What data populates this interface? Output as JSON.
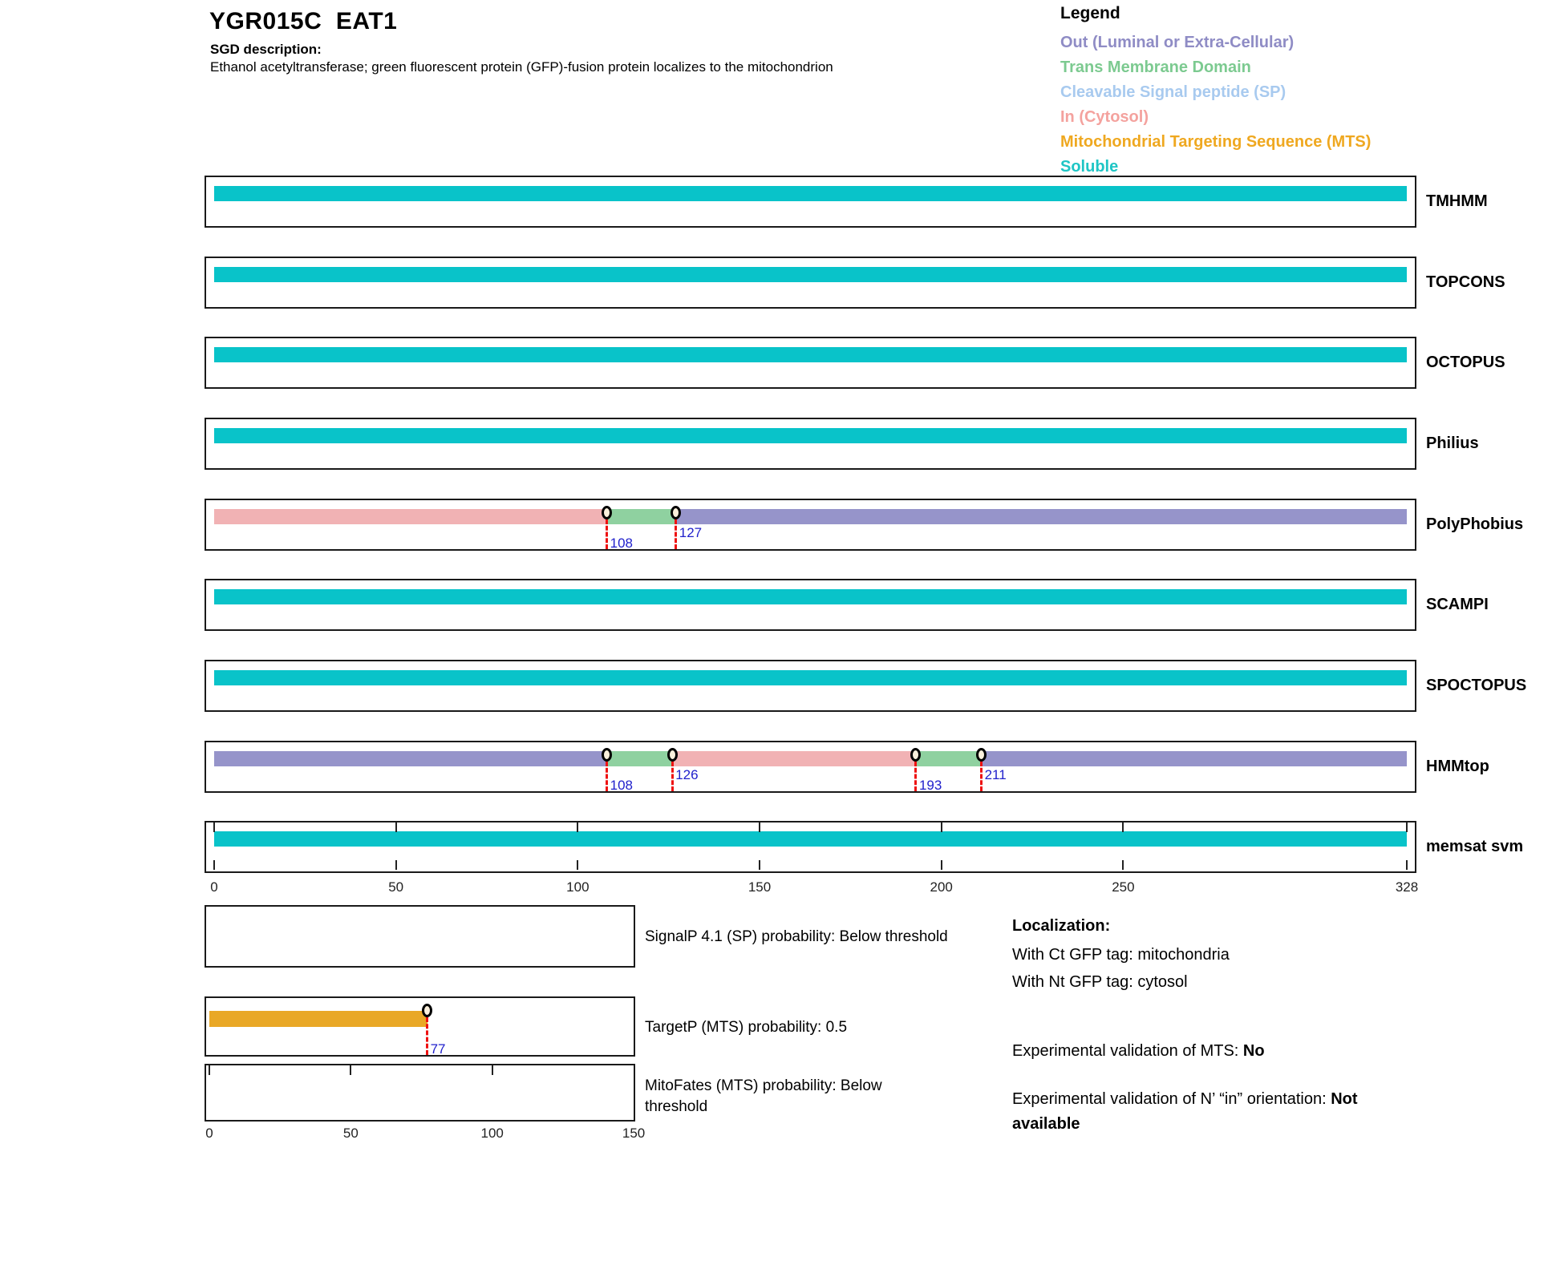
{
  "header": {
    "title": "YGR015C  EAT1",
    "sgd_label": "SGD description:",
    "sgd_description": "Ethanol acetyltransferase; green fluorescent protein (GFP)-fusion protein localizes to the mitochondrion"
  },
  "legend": {
    "title": "Legend",
    "items": [
      {
        "id": "out",
        "label": "Out (Luminal or Extra-Cellular)",
        "color": "#8F8CC5"
      },
      {
        "id": "tm",
        "label": "Trans Membrane Domain",
        "color": "#7CCA90"
      },
      {
        "id": "sp",
        "label": "Cleavable Signal peptide (SP)",
        "color": "#A8CAEF"
      },
      {
        "id": "in",
        "label": "In (Cytosol)",
        "color": "#F4A29E"
      },
      {
        "id": "mts",
        "label": "Mitochondrial Targeting Sequence (MTS)",
        "color": "#EFA820"
      },
      {
        "id": "soluble",
        "label": "Soluble",
        "color": "#1EC5C5"
      }
    ]
  },
  "chart_data": {
    "type": "protein-topology-tracks",
    "sequence_length": 328,
    "region_colors": {
      "soluble": "#09C3C9",
      "in": "#F1B2B4",
      "out": "#9694CA",
      "tm": "#8FD1A0",
      "mts": "#E9A826",
      "sp": "#A8CAEF"
    },
    "marker_style": {
      "line_color": "#EE1111",
      "label_color": "#2222CC",
      "fill": "#FBF0DC",
      "stroke": "#000000"
    },
    "tracks": [
      {
        "name": "TMHMM",
        "segments": [
          {
            "type": "soluble",
            "start": 0,
            "end": 328
          }
        ],
        "markers": []
      },
      {
        "name": "TOPCONS",
        "segments": [
          {
            "type": "soluble",
            "start": 0,
            "end": 328
          }
        ],
        "markers": []
      },
      {
        "name": "OCTOPUS",
        "segments": [
          {
            "type": "soluble",
            "start": 0,
            "end": 328
          }
        ],
        "markers": []
      },
      {
        "name": "Philius",
        "segments": [
          {
            "type": "soluble",
            "start": 0,
            "end": 328
          }
        ],
        "markers": []
      },
      {
        "name": "PolyPhobius",
        "segments": [
          {
            "type": "in",
            "start": 0,
            "end": 108
          },
          {
            "type": "tm",
            "start": 108,
            "end": 127
          },
          {
            "type": "out",
            "start": 127,
            "end": 328
          }
        ],
        "markers": [
          108,
          127
        ]
      },
      {
        "name": "SCAMPI",
        "segments": [
          {
            "type": "soluble",
            "start": 0,
            "end": 328
          }
        ],
        "markers": []
      },
      {
        "name": "SPOCTOPUS",
        "segments": [
          {
            "type": "soluble",
            "start": 0,
            "end": 328
          }
        ],
        "markers": []
      },
      {
        "name": "HMMtop",
        "segments": [
          {
            "type": "out",
            "start": 0,
            "end": 108
          },
          {
            "type": "tm",
            "start": 108,
            "end": 126
          },
          {
            "type": "in",
            "start": 126,
            "end": 193
          },
          {
            "type": "tm",
            "start": 193,
            "end": 211
          },
          {
            "type": "out",
            "start": 211,
            "end": 328
          }
        ],
        "markers": [
          108,
          126,
          193,
          211
        ]
      },
      {
        "name": "memsat svm",
        "segments": [
          {
            "type": "soluble",
            "start": 0,
            "end": 328
          }
        ],
        "markers": [],
        "ruler": true
      }
    ],
    "x_axis": {
      "ticks": [
        0,
        50,
        100,
        150,
        200,
        250,
        328
      ]
    },
    "probability_panels": [
      {
        "name": "SignalP",
        "label": "SignalP 4.1 (SP) probability: Below threshold",
        "range": [
          0,
          150
        ],
        "bar": null,
        "markers": [],
        "axis_ticks": null
      },
      {
        "name": "TargetP",
        "label": "TargetP (MTS) probability: 0.5",
        "range": [
          0,
          150
        ],
        "bar": {
          "type": "mts",
          "start": 0,
          "end": 77
        },
        "markers": [
          77
        ],
        "axis_ticks": null
      },
      {
        "name": "MitoFates",
        "label": "MitoFates (MTS) probability: Below threshold",
        "range": [
          0,
          150
        ],
        "bar": null,
        "markers": [],
        "axis_ticks": [
          0,
          50,
          100,
          150
        ]
      }
    ]
  },
  "localization": {
    "title": "Localization:",
    "lines": [
      "With Ct GFP tag: mitochondria",
      "With Nt GFP tag: cytosol"
    ],
    "mts_label": "Experimental validation of MTS: ",
    "mts_value": "No",
    "orientation_label": "Experimental validation of N’ “in” orientation: ",
    "orientation_value": "Not available"
  }
}
